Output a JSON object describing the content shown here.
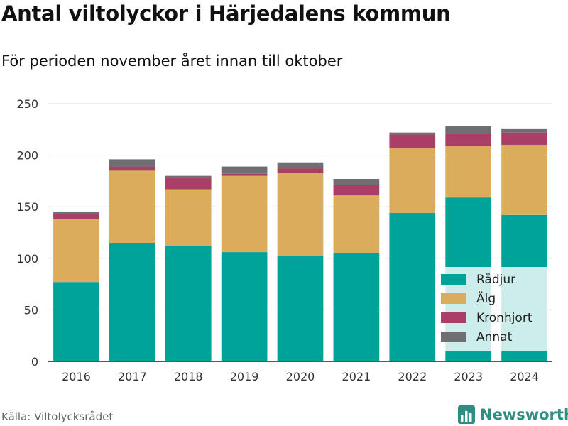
{
  "header": {
    "title": "Antal viltolyckor i Härjedalens kommun",
    "subtitle": "För perioden november året innan till oktober"
  },
  "footer": {
    "source": "Källa: Viltolycksrådet",
    "brand": "Newsworthy"
  },
  "chart_data": {
    "type": "bar",
    "stacked": true,
    "categories": [
      "2016",
      "2017",
      "2018",
      "2019",
      "2020",
      "2021",
      "2022",
      "2023",
      "2024"
    ],
    "series": [
      {
        "name": "Rådjur",
        "color": "#00a398",
        "values": [
          77,
          115,
          112,
          106,
          102,
          105,
          144,
          159,
          142
        ]
      },
      {
        "name": "Älg",
        "color": "#daac5b",
        "values": [
          61,
          70,
          55,
          74,
          81,
          56,
          63,
          50,
          68
        ]
      },
      {
        "name": "Kronhjort",
        "color": "#ab3e66",
        "values": [
          5,
          4,
          11,
          2,
          4,
          10,
          13,
          12,
          12
        ]
      },
      {
        "name": "Annat",
        "color": "#6f6f73",
        "values": [
          2,
          7,
          2,
          7,
          6,
          6,
          2,
          7,
          4
        ]
      }
    ],
    "ylim": [
      0,
      250
    ],
    "yticks": [
      0,
      50,
      100,
      150,
      200,
      250
    ],
    "grid": true,
    "legend_position": "bottom-right"
  }
}
